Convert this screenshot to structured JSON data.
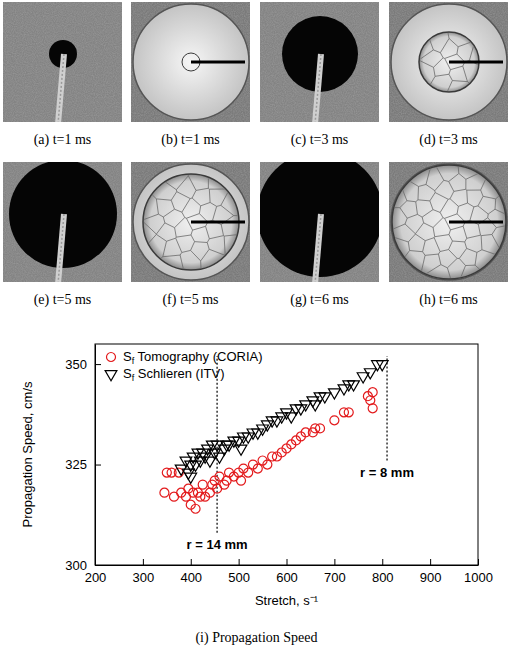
{
  "figure": {
    "captions": [
      "(a) t=1 ms",
      "(b) t=1 ms",
      "(c) t=3 ms",
      "(d) t=3 ms",
      "(e) t=5 ms",
      "(f) t=5 ms",
      "(g) t=6 ms",
      "(h) t=6 ms"
    ]
  },
  "chart_data": {
    "type": "scatter",
    "title": "(i) Propagation Speed",
    "x_label": "Stretch, s⁻¹",
    "y_label": "Propagation Speed, cm/s",
    "xlim": [
      200,
      1000
    ],
    "xticks": [
      200,
      300,
      400,
      500,
      600,
      700,
      800,
      900,
      1000
    ],
    "ylim": [
      300,
      355
    ],
    "yticks": [
      300,
      325,
      350
    ],
    "legend": "upper left",
    "grid": false,
    "series": [
      {
        "name": "Sf Tomography (CORIA)",
        "color": "#e31a1c",
        "marker": "circle",
        "x": [
          345,
          350,
          360,
          365,
          375,
          380,
          390,
          395,
          400,
          405,
          410,
          415,
          420,
          425,
          430,
          440,
          445,
          450,
          455,
          460,
          470,
          475,
          480,
          490,
          500,
          505,
          510,
          520,
          530,
          540,
          550,
          560,
          570,
          580,
          590,
          600,
          610,
          620,
          630,
          640,
          655,
          660,
          670,
          700,
          720,
          730,
          770,
          775,
          780,
          780
        ],
        "values": [
          318,
          323,
          323,
          317,
          323,
          318,
          317,
          319,
          315,
          318,
          314,
          318,
          317,
          320,
          317,
          318,
          320,
          321,
          319,
          322,
          320,
          321,
          323,
          322,
          323,
          321,
          324,
          323,
          325,
          324,
          326,
          325,
          327,
          327,
          328,
          329,
          330,
          331,
          332,
          333,
          333,
          334,
          334,
          336,
          338,
          338,
          342,
          341,
          343,
          339
        ]
      },
      {
        "name": "Sf Schlieren (ITV)",
        "color": "#000000",
        "marker": "triangle-down",
        "x": [
          380,
          390,
          395,
          400,
          400,
          405,
          410,
          415,
          420,
          425,
          430,
          435,
          440,
          445,
          450,
          455,
          460,
          470,
          475,
          480,
          490,
          500,
          505,
          510,
          520,
          530,
          540,
          550,
          560,
          570,
          580,
          590,
          600,
          610,
          620,
          630,
          640,
          655,
          660,
          670,
          680,
          700,
          720,
          730,
          740,
          760,
          775,
          790,
          800
        ],
        "values": [
          324,
          326,
          323,
          325,
          322,
          327,
          325,
          328,
          326,
          328,
          327,
          329,
          326,
          330,
          328,
          330,
          327,
          329,
          330,
          330,
          331,
          331,
          329,
          332,
          332,
          333,
          333,
          334,
          335,
          336,
          336,
          337,
          338,
          337,
          339,
          339,
          340,
          341,
          340,
          342,
          342,
          343,
          344,
          345,
          345,
          347,
          348,
          350,
          350
        ]
      }
    ],
    "annotations": [
      {
        "text": "r = 14 mm",
        "x": 455,
        "y": [
          308,
          352
        ]
      },
      {
        "text": "r = 8 mm",
        "x": 810,
        "y": [
          326,
          352
        ]
      }
    ]
  }
}
